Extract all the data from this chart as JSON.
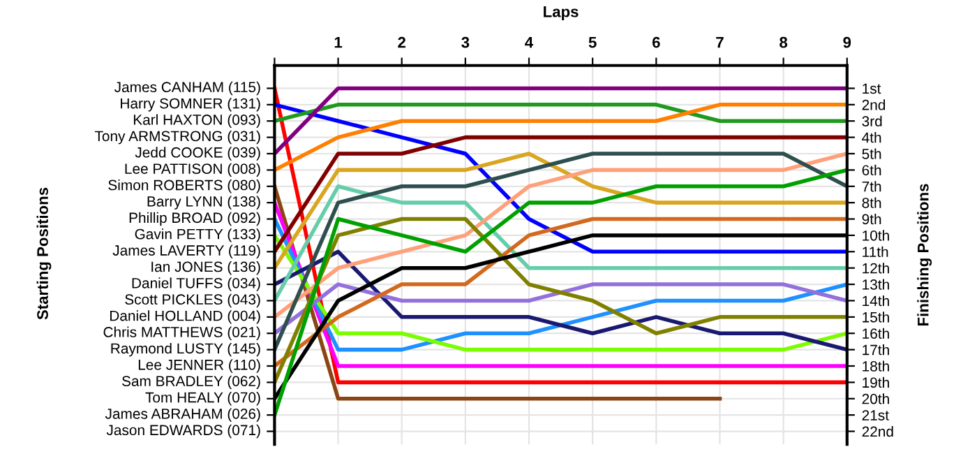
{
  "chart_data": {
    "type": "line",
    "xlabel": "Laps",
    "ylabel": "Finishing Positions",
    "x": [
      0,
      1,
      2,
      3,
      4,
      5,
      6,
      7,
      8,
      9
    ],
    "xlim": [
      0,
      9
    ],
    "xticks": [
      {
        "value": 0,
        "label": null
      },
      1,
      2,
      3,
      4,
      5,
      6,
      7,
      8,
      9
    ],
    "ylim": [
      22.8,
      -0.4
    ],
    "yticks": [
      {
        "value": 1,
        "label": "1st"
      },
      {
        "value": 2,
        "label": "2nd"
      },
      {
        "value": 3,
        "label": "3rd"
      },
      {
        "value": 4,
        "label": "4th"
      },
      {
        "value": 5,
        "label": "5th"
      },
      {
        "value": 6,
        "label": "6th"
      },
      {
        "value": 7,
        "label": "7th"
      },
      {
        "value": 8,
        "label": "8th"
      },
      {
        "value": 9,
        "label": "9th"
      },
      {
        "value": 10,
        "label": "10th"
      },
      {
        "value": 11,
        "label": "11th"
      },
      {
        "value": 12,
        "label": "12th"
      },
      {
        "value": 13,
        "label": "13th"
      },
      {
        "value": 14,
        "label": "14th"
      },
      {
        "value": 15,
        "label": "15th"
      },
      {
        "value": 16,
        "label": "16th"
      },
      {
        "value": 17,
        "label": "17th"
      },
      {
        "value": 18,
        "label": "18th"
      },
      {
        "value": 19,
        "label": "19th"
      },
      {
        "value": 20,
        "label": "20th"
      },
      {
        "value": 21,
        "label": "21st"
      },
      {
        "value": 22,
        "label": "22nd"
      }
    ],
    "annotations": [
      "Starting Positions",
      "James CANHAM (115)",
      "Harry SOMNER (131)",
      "Karl HAXTON (093)",
      "Tony ARMSTRONG (031)",
      "Jedd COOKE (039)",
      "Lee PATTISON (008)",
      "Simon ROBERTS (080)",
      "Barry LYNN (138)",
      "Phillip BROAD (092)",
      "Gavin PETTY (133)",
      "James LAVERTY (119)",
      "Ian JONES (136)",
      "Daniel TUFFS (034)",
      "Scott PICKLES (043)",
      "Daniel HOLLAND (004)",
      "Chris MATTHEWS (021)",
      "Raymond LUSTY (145)",
      "Lee JENNER (110)",
      "Sam BRADLEY (062)",
      "Tom HEALY (070)",
      "James ABRAHAM (026)",
      "Jason EDWARDS (071)"
    ],
    "grid": true,
    "marker": "none",
    "line_style": "solid",
    "series": [
      {
        "color": "#ff0000",
        "values": [
          1,
          19,
          19,
          19,
          19,
          19,
          19,
          19,
          19,
          19
        ]
      },
      {
        "color": "#0000ff",
        "values": [
          2,
          3,
          4,
          5,
          9,
          11,
          11,
          11,
          11,
          11
        ]
      },
      {
        "color": "#1f9a1f",
        "values": [
          3,
          2,
          2,
          2,
          2,
          2,
          2,
          3,
          3,
          3
        ]
      },
      {
        "color": "#800080",
        "values": [
          5,
          1,
          1,
          1,
          1,
          1,
          1,
          1,
          1,
          1
        ]
      },
      {
        "color": "#ff8000",
        "values": [
          6,
          4,
          3,
          3,
          3,
          3,
          3,
          2,
          2,
          2
        ]
      },
      {
        "color": "#8b4513",
        "values": [
          7,
          20,
          20,
          20,
          20,
          20,
          20,
          20,
          null,
          null
        ]
      },
      {
        "color": "#ff00ff",
        "values": [
          8,
          18,
          18,
          18,
          18,
          18,
          18,
          18,
          18,
          18
        ]
      },
      {
        "color": "#1e90ff",
        "values": [
          9,
          17,
          17,
          16,
          16,
          15,
          14,
          14,
          14,
          13
        ]
      },
      {
        "color": "#7cfc00",
        "values": [
          10,
          16,
          16,
          17,
          17,
          17,
          17,
          17,
          17,
          16
        ]
      },
      {
        "color": "#800000",
        "values": [
          11,
          5,
          5,
          4,
          4,
          4,
          4,
          4,
          4,
          4
        ]
      },
      {
        "color": "#daa520",
        "values": [
          12,
          6,
          6,
          6,
          5,
          7,
          8,
          8,
          8,
          8
        ]
      },
      {
        "color": "#191970",
        "values": [
          13,
          11,
          15,
          15,
          15,
          16,
          15,
          16,
          16,
          17
        ]
      },
      {
        "color": "#66cdaa",
        "values": [
          14,
          7,
          8,
          8,
          12,
          12,
          12,
          12,
          12,
          12
        ]
      },
      {
        "color": "#ffa07a",
        "values": [
          15,
          12,
          11,
          10,
          7,
          6,
          6,
          6,
          6,
          5
        ]
      },
      {
        "color": "#9370db",
        "values": [
          16,
          13,
          14,
          14,
          14,
          13,
          13,
          13,
          13,
          14
        ]
      },
      {
        "color": "#2f4f4f",
        "values": [
          17,
          8,
          7,
          7,
          6,
          5,
          5,
          5,
          5,
          7
        ]
      },
      {
        "color": "#d2691e",
        "values": [
          18,
          15,
          13,
          13,
          10,
          9,
          9,
          9,
          9,
          9
        ]
      },
      {
        "color": "#808000",
        "values": [
          19,
          10,
          9,
          9,
          13,
          14,
          16,
          15,
          15,
          15
        ]
      },
      {
        "color": "#000000",
        "values": [
          20,
          14,
          12,
          12,
          11,
          10,
          10,
          10,
          10,
          10
        ]
      },
      {
        "color": "#00a000",
        "values": [
          21,
          9,
          10,
          11,
          8,
          8,
          7,
          7,
          7,
          6
        ]
      }
    ]
  }
}
